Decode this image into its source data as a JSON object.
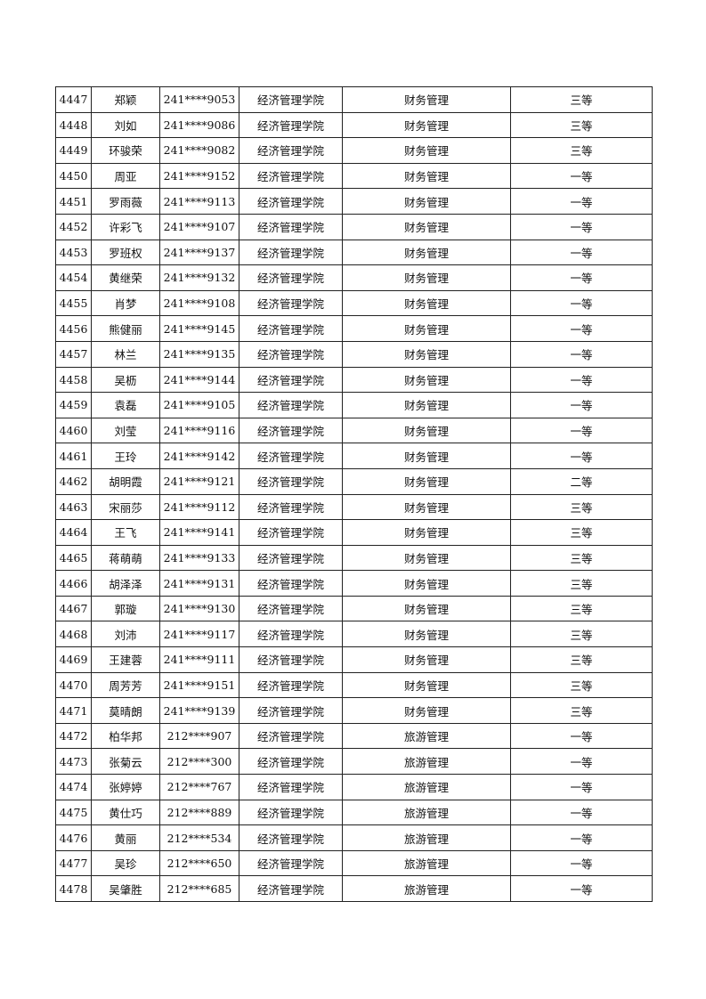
{
  "rows": [
    {
      "no": "4447",
      "name": "郑颖",
      "id": "241****9053",
      "college": "经济管理学院",
      "major": "财务管理",
      "grade": "三等"
    },
    {
      "no": "4448",
      "name": "刘如",
      "id": "241****9086",
      "college": "经济管理学院",
      "major": "财务管理",
      "grade": "三等"
    },
    {
      "no": "4449",
      "name": "环骏荣",
      "id": "241****9082",
      "college": "经济管理学院",
      "major": "财务管理",
      "grade": "三等"
    },
    {
      "no": "4450",
      "name": "周亚",
      "id": "241****9152",
      "college": "经济管理学院",
      "major": "财务管理",
      "grade": "一等"
    },
    {
      "no": "4451",
      "name": "罗雨薇",
      "id": "241****9113",
      "college": "经济管理学院",
      "major": "财务管理",
      "grade": "一等"
    },
    {
      "no": "4452",
      "name": "许彩飞",
      "id": "241****9107",
      "college": "经济管理学院",
      "major": "财务管理",
      "grade": "一等"
    },
    {
      "no": "4453",
      "name": "罗班权",
      "id": "241****9137",
      "college": "经济管理学院",
      "major": "财务管理",
      "grade": "一等"
    },
    {
      "no": "4454",
      "name": "黄继荣",
      "id": "241****9132",
      "college": "经济管理学院",
      "major": "财务管理",
      "grade": "一等"
    },
    {
      "no": "4455",
      "name": "肖梦",
      "id": "241****9108",
      "college": "经济管理学院",
      "major": "财务管理",
      "grade": "一等"
    },
    {
      "no": "4456",
      "name": "熊健丽",
      "id": "241****9145",
      "college": "经济管理学院",
      "major": "财务管理",
      "grade": "一等"
    },
    {
      "no": "4457",
      "name": "林兰",
      "id": "241****9135",
      "college": "经济管理学院",
      "major": "财务管理",
      "grade": "一等"
    },
    {
      "no": "4458",
      "name": "吴枥",
      "id": "241****9144",
      "college": "经济管理学院",
      "major": "财务管理",
      "grade": "一等"
    },
    {
      "no": "4459",
      "name": "袁磊",
      "id": "241****9105",
      "college": "经济管理学院",
      "major": "财务管理",
      "grade": "一等"
    },
    {
      "no": "4460",
      "name": "刘莹",
      "id": "241****9116",
      "college": "经济管理学院",
      "major": "财务管理",
      "grade": "一等"
    },
    {
      "no": "4461",
      "name": "王玲",
      "id": "241****9142",
      "college": "经济管理学院",
      "major": "财务管理",
      "grade": "一等"
    },
    {
      "no": "4462",
      "name": "胡明霞",
      "id": "241****9121",
      "college": "经济管理学院",
      "major": "财务管理",
      "grade": "二等"
    },
    {
      "no": "4463",
      "name": "宋丽莎",
      "id": "241****9112",
      "college": "经济管理学院",
      "major": "财务管理",
      "grade": "三等"
    },
    {
      "no": "4464",
      "name": "王飞",
      "id": "241****9141",
      "college": "经济管理学院",
      "major": "财务管理",
      "grade": "三等"
    },
    {
      "no": "4465",
      "name": "蒋萌萌",
      "id": "241****9133",
      "college": "经济管理学院",
      "major": "财务管理",
      "grade": "三等"
    },
    {
      "no": "4466",
      "name": "胡泽泽",
      "id": "241****9131",
      "college": "经济管理学院",
      "major": "财务管理",
      "grade": "三等"
    },
    {
      "no": "4467",
      "name": "郭璇",
      "id": "241****9130",
      "college": "经济管理学院",
      "major": "财务管理",
      "grade": "三等"
    },
    {
      "no": "4468",
      "name": "刘沛",
      "id": "241****9117",
      "college": "经济管理学院",
      "major": "财务管理",
      "grade": "三等"
    },
    {
      "no": "4469",
      "name": "王建蓉",
      "id": "241****9111",
      "college": "经济管理学院",
      "major": "财务管理",
      "grade": "三等"
    },
    {
      "no": "4470",
      "name": "周芳芳",
      "id": "241****9151",
      "college": "经济管理学院",
      "major": "财务管理",
      "grade": "三等"
    },
    {
      "no": "4471",
      "name": "莫晴朗",
      "id": "241****9139",
      "college": "经济管理学院",
      "major": "财务管理",
      "grade": "三等"
    },
    {
      "no": "4472",
      "name": "柏华邦",
      "id": "212****907",
      "college": "经济管理学院",
      "major": "旅游管理",
      "grade": "一等"
    },
    {
      "no": "4473",
      "name": "张菊云",
      "id": "212****300",
      "college": "经济管理学院",
      "major": "旅游管理",
      "grade": "一等"
    },
    {
      "no": "4474",
      "name": "张婷婷",
      "id": "212****767",
      "college": "经济管理学院",
      "major": "旅游管理",
      "grade": "一等"
    },
    {
      "no": "4475",
      "name": "黄仕巧",
      "id": "212****889",
      "college": "经济管理学院",
      "major": "旅游管理",
      "grade": "一等"
    },
    {
      "no": "4476",
      "name": "黄丽",
      "id": "212****534",
      "college": "经济管理学院",
      "major": "旅游管理",
      "grade": "一等"
    },
    {
      "no": "4477",
      "name": "吴珍",
      "id": "212****650",
      "college": "经济管理学院",
      "major": "旅游管理",
      "grade": "一等"
    },
    {
      "no": "4478",
      "name": "吴肇胜",
      "id": "212****685",
      "college": "经济管理学院",
      "major": "旅游管理",
      "grade": "一等"
    }
  ]
}
